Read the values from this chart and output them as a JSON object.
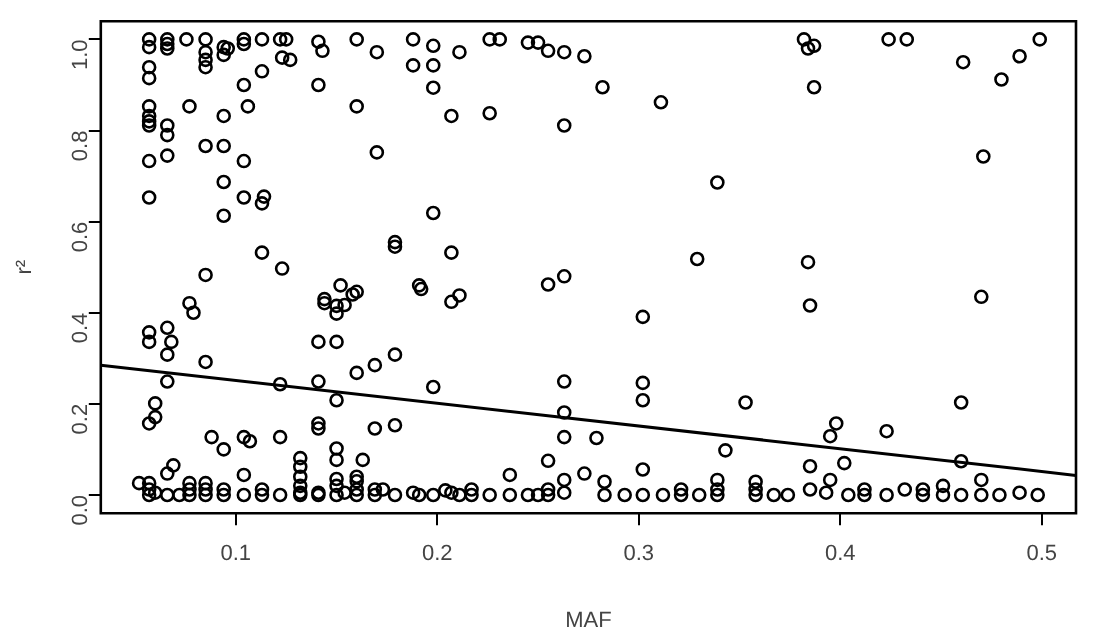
{
  "chart_data": {
    "type": "scatter",
    "xlabel": "MAF",
    "ylabel": "r²",
    "marker": "circle",
    "grid": false,
    "legend": false,
    "xlim": [
      0.033,
      0.517
    ],
    "ylim": [
      -0.04,
      1.04
    ],
    "xticks": [
      0.1,
      0.2,
      0.3,
      0.4,
      0.5
    ],
    "yticks": [
      {
        "value": 0,
        "label": "0.0"
      },
      0.2,
      0.4,
      0.6,
      0.8,
      {
        "value": 1,
        "label": "1.0"
      }
    ],
    "series": [
      {
        "color": "#000000",
        "x": [
          0.057,
          0.057,
          0.057,
          0.057,
          0.057,
          0.057,
          0.057,
          0.057,
          0.057,
          0.057,
          0.066,
          0.066,
          0.066,
          0.066,
          0.066,
          0.066,
          0.0755,
          0.077,
          0.085,
          0.085,
          0.085,
          0.085,
          0.085,
          0.085,
          0.094,
          0.096,
          0.094,
          0.094,
          0.094,
          0.094,
          0.094,
          0.104,
          0.104,
          0.104,
          0.104,
          0.104,
          0.106,
          0.113,
          0.113,
          0.113,
          0.114,
          0.113,
          0.122,
          0.125,
          0.123,
          0.127,
          0.123,
          0.141,
          0.143,
          0.141,
          0.144,
          0.152,
          0.15,
          0.16,
          0.16,
          0.16,
          0.17,
          0.17,
          0.179,
          0.179,
          0.188,
          0.188,
          0.191,
          0.192,
          0.198,
          0.198,
          0.198,
          0.198,
          0.207,
          0.207,
          0.207,
          0.211,
          0.211,
          0.226,
          0.231,
          0.226,
          0.245,
          0.25,
          0.255,
          0.263,
          0.263,
          0.255,
          0.263,
          0.273,
          0.282,
          0.311,
          0.339,
          0.329,
          0.382,
          0.384,
          0.387,
          0.387,
          0.384,
          0.424,
          0.433,
          0.461,
          0.471,
          0.48,
          0.489,
          0.499,
          0.057,
          0.057,
          0.057,
          0.06,
          0.06,
          0.052,
          0.057,
          0.057,
          0.057,
          0.06,
          0.066,
          0.066,
          0.066,
          0.068,
          0.066,
          0.066,
          0.069,
          0.077,
          0.079,
          0.077,
          0.077,
          0.077,
          0.072,
          0.085,
          0.085,
          0.085,
          0.085,
          0.088,
          0.094,
          0.094,
          0.094,
          0.104,
          0.107,
          0.104,
          0.104,
          0.113,
          0.113,
          0.122,
          0.122,
          0.122,
          0.132,
          0.132,
          0.132,
          0.132,
          0.132,
          0.132,
          0.141,
          0.141,
          0.141,
          0.141,
          0.141,
          0.141,
          0.144,
          0.15,
          0.15,
          0.15,
          0.15,
          0.15,
          0.15,
          0.15,
          0.15,
          0.154,
          0.158,
          0.154,
          0.16,
          0.16,
          0.16,
          0.16,
          0.16,
          0.163,
          0.169,
          0.169,
          0.169,
          0.169,
          0.173,
          0.179,
          0.179,
          0.179,
          0.188,
          0.191,
          0.198,
          0.198,
          0.204,
          0.207,
          0.211,
          0.217,
          0.217,
          0.226,
          0.236,
          0.236,
          0.245,
          0.25,
          0.255,
          0.255,
          0.255,
          0.263,
          0.263,
          0.263,
          0.263,
          0.263,
          0.273,
          0.279,
          0.283,
          0.283,
          0.293,
          0.302,
          0.302,
          0.302,
          0.302,
          0.302,
          0.312,
          0.321,
          0.321,
          0.33,
          0.339,
          0.339,
          0.339,
          0.343,
          0.353,
          0.358,
          0.358,
          0.358,
          0.367,
          0.374,
          0.385,
          0.385,
          0.385,
          0.393,
          0.395,
          0.395,
          0.398,
          0.402,
          0.404,
          0.412,
          0.412,
          0.423,
          0.423,
          0.432,
          0.441,
          0.441,
          0.451,
          0.451,
          0.46,
          0.46,
          0.46,
          0.47,
          0.47,
          0.47,
          0.479,
          0.489,
          0.498
        ],
        "values": [
          1.0,
          0.983,
          0.939,
          0.915,
          0.853,
          0.832,
          0.82,
          0.811,
          0.733,
          0.653,
          1.0,
          0.99,
          0.98,
          0.811,
          0.79,
          0.745,
          1.0,
          0.853,
          1.0,
          0.972,
          0.955,
          0.939,
          0.766,
          0.483,
          0.983,
          0.98,
          0.966,
          0.832,
          0.766,
          0.687,
          0.613,
          1.0,
          0.99,
          0.9,
          0.733,
          0.653,
          0.853,
          1.0,
          0.93,
          0.64,
          0.655,
          0.532,
          1.0,
          1.0,
          0.96,
          0.955,
          0.497,
          0.995,
          0.975,
          0.9,
          0.43,
          0.46,
          0.415,
          1.0,
          0.853,
          0.446,
          0.972,
          0.752,
          0.555,
          0.545,
          1.0,
          0.943,
          0.46,
          0.452,
          0.986,
          0.943,
          0.894,
          0.619,
          0.832,
          0.532,
          0.424,
          0.972,
          0.438,
          1.0,
          1.0,
          0.838,
          0.993,
          0.993,
          0.975,
          0.972,
          0.811,
          0.462,
          0.48,
          0.963,
          0.895,
          0.862,
          0.686,
          0.518,
          1.0,
          0.98,
          0.986,
          0.895,
          0.511,
          1.0,
          1.0,
          0.95,
          0.743,
          0.912,
          0.963,
          1.0,
          0.357,
          0.336,
          0.157,
          0.201,
          0.171,
          0.026,
          0.026,
          0.012,
          0,
          0.005,
          0.367,
          0.308,
          0.249,
          0.336,
          0.047,
          0,
          0.065,
          0.421,
          0.4,
          0.026,
          0.012,
          0,
          0,
          0.292,
          0.026,
          0.012,
          0,
          0.127,
          0.1,
          0.012,
          0,
          0.127,
          0.118,
          0.044,
          0,
          0.012,
          0,
          0.243,
          0.127,
          0,
          0.081,
          0.062,
          0.04,
          0.02,
          0.005,
          0,
          0.336,
          0.249,
          0.157,
          0.146,
          0.005,
          0,
          0.421,
          0.398,
          0.336,
          0.208,
          0.102,
          0.077,
          0.035,
          0.02,
          0,
          0.417,
          0.44,
          0.005,
          0.268,
          0.04,
          0.03,
          0.012,
          0,
          0.077,
          0.146,
          0.285,
          0.012,
          0,
          0.012,
          0.308,
          0.153,
          0,
          0.005,
          0,
          0.237,
          0,
          0.01,
          0.005,
          0,
          0.012,
          0,
          0,
          0.044,
          0,
          0,
          0,
          0.075,
          0.012,
          0,
          0.249,
          0.181,
          0.127,
          0.033,
          0.005,
          0.047,
          0.125,
          0.029,
          0,
          0,
          0.391,
          0.246,
          0.208,
          0.056,
          0,
          0,
          0.012,
          0,
          0,
          0.033,
          0.012,
          0,
          0.098,
          0.203,
          0.029,
          0.012,
          0,
          0,
          0,
          0.416,
          0.063,
          0.012,
          0.005,
          0.129,
          0.033,
          0.157,
          0.07,
          0,
          0.012,
          0,
          0.14,
          0,
          0.012,
          0.012,
          0,
          0.02,
          0,
          0.203,
          0.074,
          0,
          0.435,
          0.033,
          0,
          0,
          0.005,
          0
        ]
      },
      {
        "type": "line",
        "color": "#000000",
        "marker": "none",
        "x": [
          0.033,
          0.517
        ],
        "values": [
          0.285,
          0.043
        ]
      }
    ]
  }
}
